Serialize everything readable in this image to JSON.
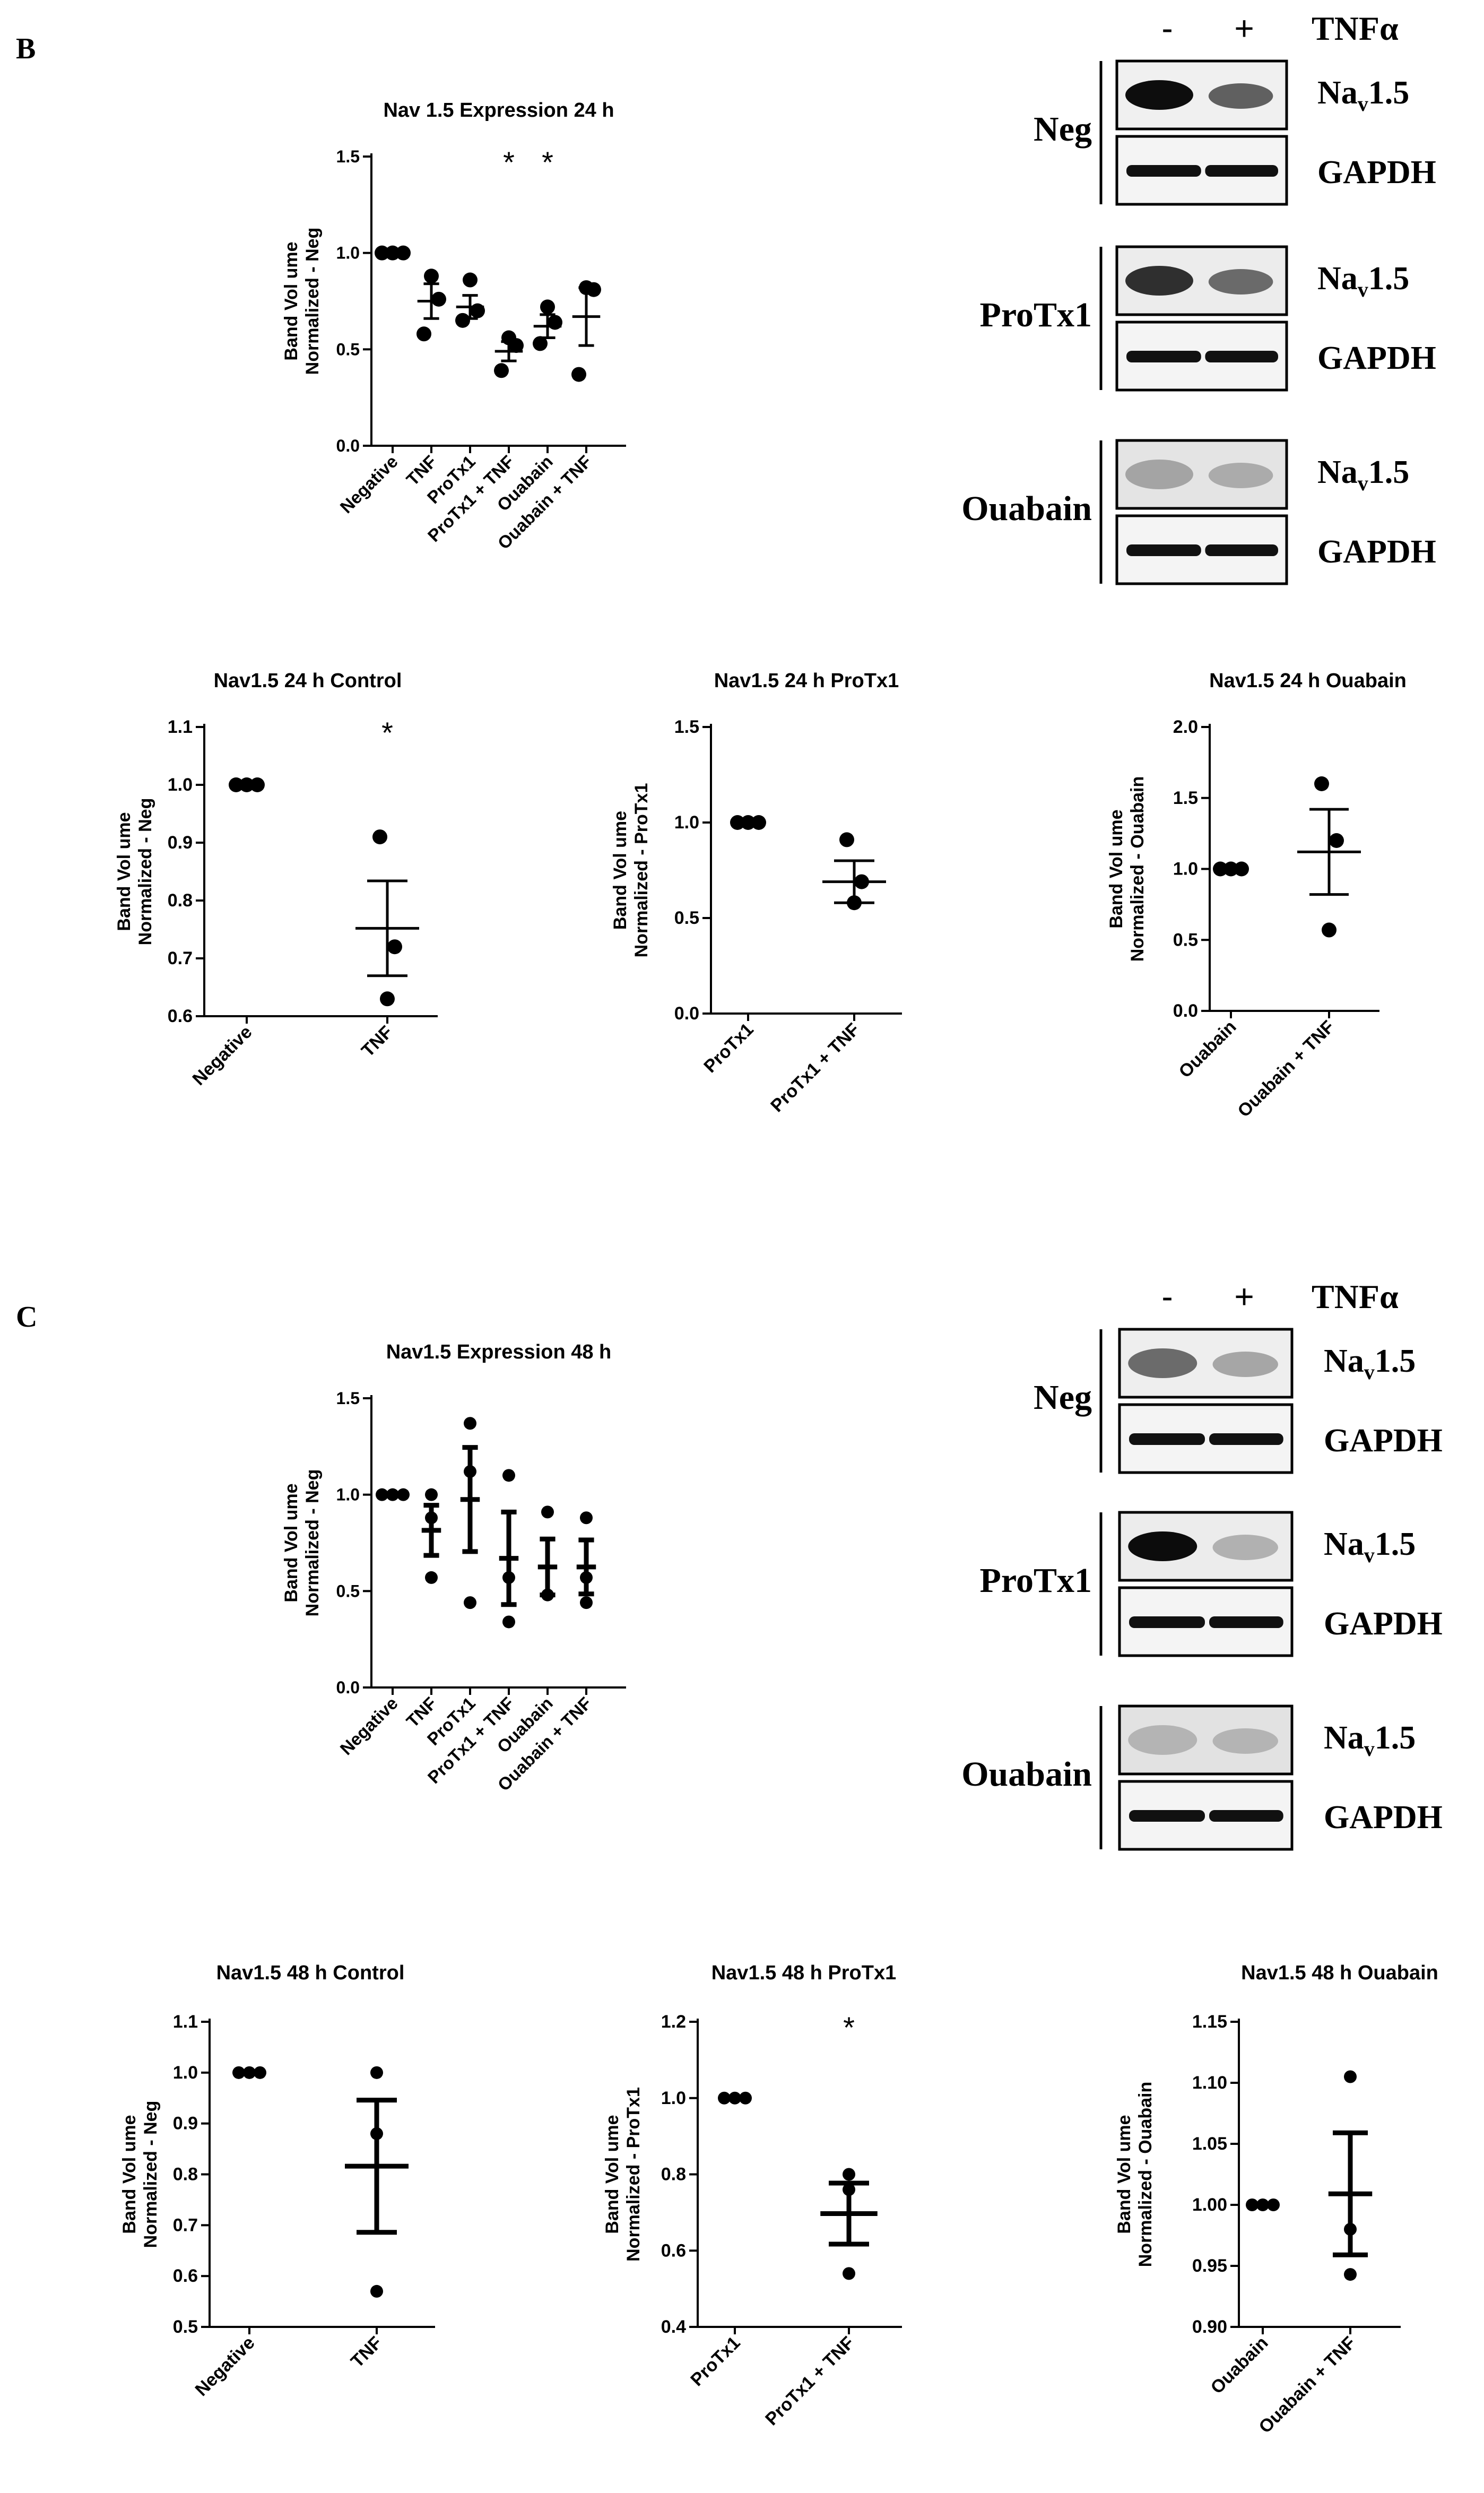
{
  "panels": {
    "B": {
      "label": "B"
    },
    "C": {
      "label": "C"
    }
  },
  "blots": [
    {
      "header": {
        "minus": "-",
        "plus": "+",
        "treatment": "TNFα"
      },
      "groups": [
        {
          "name": "Neg",
          "target_main": "Na",
          "target_sub": "v",
          "target_rest": "1.5",
          "loading": "GAPDH"
        },
        {
          "name": "ProTx1",
          "target_main": "Na",
          "target_sub": "v",
          "target_rest": "1.5",
          "loading": "GAPDH"
        },
        {
          "name": "Ouabain",
          "target_main": "Na",
          "target_sub": "v",
          "target_rest": "1.5",
          "loading": "GAPDH"
        }
      ]
    },
    {
      "header": {
        "minus": "-",
        "plus": "+",
        "treatment": "TNFα"
      },
      "groups": [
        {
          "name": "Neg",
          "target_main": "Na",
          "target_sub": "v",
          "target_rest": "1.5",
          "loading": "GAPDH"
        },
        {
          "name": "ProTx1",
          "target_main": "Na",
          "target_sub": "v",
          "target_rest": "1.5",
          "loading": "GAPDH"
        },
        {
          "name": "Ouabain",
          "target_main": "Na",
          "target_sub": "v",
          "target_rest": "1.5",
          "loading": "GAPDH"
        }
      ]
    }
  ],
  "chart_data": [
    {
      "type": "scatter",
      "title": "Nav 1.5 Expression 24 h",
      "ylabel": [
        "Band Vol ume",
        "Normalized - Neg"
      ],
      "categories": [
        "Negative",
        "TNF",
        "ProTx1",
        "ProTx1 + TNF",
        "Ouabain",
        "Ouabain + TNF"
      ],
      "ylim": [
        0.0,
        1.5
      ],
      "yticks": [
        0.0,
        0.5,
        1.0,
        1.5
      ],
      "ytick_labels": [
        "0.0",
        "0.5",
        "1.0",
        "1.5"
      ],
      "points": [
        [
          1.0,
          1.0,
          1.0
        ],
        [
          0.58,
          0.88,
          0.76
        ],
        [
          0.65,
          0.86,
          0.7
        ],
        [
          0.39,
          0.56,
          0.52
        ],
        [
          0.53,
          0.72,
          0.64
        ],
        [
          0.37,
          0.82,
          0.81
        ]
      ],
      "means": [
        1.0,
        0.75,
        0.72,
        0.49,
        0.62,
        0.67
      ],
      "errors": [
        0.0,
        0.09,
        0.06,
        0.05,
        0.06,
        0.15
      ],
      "significance": [
        "",
        "",
        "",
        "*",
        "*",
        ""
      ]
    },
    {
      "type": "scatter",
      "title": "Nav1.5 24 h Control",
      "ylabel": [
        "Band Vol ume",
        "Normalized - Neg"
      ],
      "categories": [
        "Negative",
        "TNF"
      ],
      "ylim": [
        0.6,
        1.1
      ],
      "yticks": [
        0.6,
        0.7,
        0.8,
        0.9,
        1.0,
        1.1
      ],
      "ytick_labels": [
        "0.6",
        "0.7",
        "0.8",
        "0.9",
        "1.0",
        "1.1"
      ],
      "points": [
        [
          1.0,
          1.0,
          1.0
        ],
        [
          0.91,
          0.63,
          0.72
        ]
      ],
      "means": [
        1.0,
        0.752
      ],
      "errors": [
        0.0,
        0.082
      ],
      "significance": [
        "",
        "*"
      ]
    },
    {
      "type": "scatter",
      "title": "Nav1.5 24 h ProTx1",
      "ylabel": [
        "Band Vol ume",
        "Normalized - ProTx1"
      ],
      "categories": [
        "ProTx1",
        "ProTx1 + TNF"
      ],
      "ylim": [
        0.0,
        1.5
      ],
      "yticks": [
        0.0,
        0.5,
        1.0,
        1.5
      ],
      "ytick_labels": [
        "0.0",
        "0.5",
        "1.0",
        "1.5"
      ],
      "points": [
        [
          1.0,
          1.0,
          1.0
        ],
        [
          0.91,
          0.58,
          0.69
        ]
      ],
      "means": [
        1.0,
        0.69
      ],
      "errors": [
        0.0,
        0.11
      ],
      "significance": [
        "",
        ""
      ]
    },
    {
      "type": "scatter",
      "title": "Nav1.5 24 h Ouabain",
      "ylabel": [
        "Band Vol ume",
        "Normalized - Ouabain"
      ],
      "categories": [
        "Ouabain",
        "Ouabain + TNF"
      ],
      "ylim": [
        0.0,
        2.0
      ],
      "yticks": [
        0.0,
        0.5,
        1.0,
        1.5,
        2.0
      ],
      "ytick_labels": [
        "0.0",
        "0.5",
        "1.0",
        "1.5",
        "2.0"
      ],
      "points": [
        [
          1.0,
          1.0,
          1.0
        ],
        [
          1.6,
          0.57,
          1.2
        ]
      ],
      "means": [
        1.0,
        1.12
      ],
      "errors": [
        0.0,
        0.3
      ],
      "significance": [
        "",
        ""
      ]
    },
    {
      "type": "scatter",
      "title": "Nav1.5 Expression 48 h",
      "ylabel": [
        "Band Vol ume",
        "Normalized - Neg"
      ],
      "categories": [
        "Negative",
        "TNF",
        "ProTx1",
        "ProTx1 + TNF",
        "Ouabain",
        "Ouabain + TNF"
      ],
      "ylim": [
        0.0,
        1.5
      ],
      "yticks": [
        0.0,
        0.5,
        1.0,
        1.5
      ],
      "ytick_labels": [
        "0.0",
        "0.5",
        "1.0",
        "1.5"
      ],
      "points": [
        [
          1.0,
          1.0,
          1.0
        ],
        [
          1.0,
          0.57,
          0.88
        ],
        [
          1.37,
          0.44,
          1.12
        ],
        [
          1.1,
          0.34,
          0.57
        ],
        [
          0.91,
          0.48,
          0.48
        ],
        [
          0.88,
          0.44,
          0.57
        ]
      ],
      "means": [
        1.0,
        0.815,
        0.975,
        0.67,
        0.625,
        0.625
      ],
      "errors": [
        0.0,
        0.13,
        0.27,
        0.24,
        0.145,
        0.14
      ],
      "significance": [
        "",
        "",
        "",
        "",
        "",
        ""
      ]
    },
    {
      "type": "scatter",
      "title": "Nav1.5 48 h Control",
      "ylabel": [
        "Band Vol ume",
        "Normalized - Neg"
      ],
      "categories": [
        "Negative",
        "TNF"
      ],
      "ylim": [
        0.5,
        1.1
      ],
      "yticks": [
        0.5,
        0.6,
        0.7,
        0.8,
        0.9,
        1.0,
        1.1
      ],
      "ytick_labels": [
        "0.5",
        "0.6",
        "0.7",
        "0.8",
        "0.9",
        "1.0",
        "1.1"
      ],
      "points": [
        [
          1.0,
          1.0,
          1.0
        ],
        [
          1.0,
          0.57,
          0.88
        ]
      ],
      "means": [
        1.0,
        0.816
      ],
      "errors": [
        0.0,
        0.13
      ],
      "significance": [
        "",
        ""
      ]
    },
    {
      "type": "scatter",
      "title": "Nav1.5 48 h ProTx1",
      "ylabel": [
        "Band Vol ume",
        "Normalized - ProTx1"
      ],
      "categories": [
        "ProTx1",
        "ProTx1 + TNF"
      ],
      "ylim": [
        0.4,
        1.2
      ],
      "yticks": [
        0.4,
        0.6,
        0.8,
        1.0,
        1.2
      ],
      "ytick_labels": [
        "0.4",
        "0.6",
        "0.8",
        "1.0",
        "1.2"
      ],
      "points": [
        [
          1.0,
          1.0,
          1.0
        ],
        [
          0.8,
          0.54,
          0.76
        ]
      ],
      "means": [
        1.0,
        0.697
      ],
      "errors": [
        0.0,
        0.08
      ],
      "significance": [
        "",
        "*"
      ]
    },
    {
      "type": "scatter",
      "title": "Nav1.5 48 h Ouabain",
      "ylabel": [
        "Band Vol ume",
        "Normalized - Ouabain"
      ],
      "categories": [
        "Ouabain",
        "Ouabain + TNF"
      ],
      "ylim": [
        0.9,
        1.15
      ],
      "yticks": [
        0.9,
        0.95,
        1.0,
        1.05,
        1.1,
        1.15
      ],
      "ytick_labels": [
        "0.90",
        "0.95",
        "1.00",
        "1.05",
        "1.10",
        "1.15"
      ],
      "points": [
        [
          1.0,
          1.0,
          1.0
        ],
        [
          1.105,
          0.943,
          0.98
        ]
      ],
      "means": [
        1.0,
        1.009
      ],
      "errors": [
        0.0,
        0.05
      ],
      "significance": [
        "",
        ""
      ]
    }
  ]
}
